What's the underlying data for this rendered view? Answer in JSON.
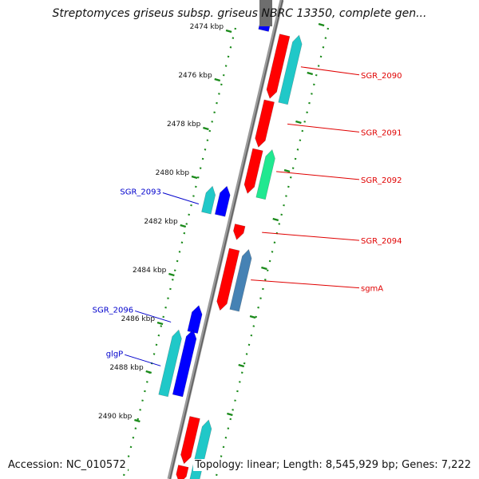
{
  "header": {
    "title": "Streptomyces griseus subsp. griseus NBRC 13350, complete gen..."
  },
  "footer": {
    "accession": "Accession: NC_010572",
    "summary": "Topology: linear; Length: 8,545,929 bp; Genes: 7,222"
  },
  "map": {
    "unit": "kbp",
    "ticks": [
      {
        "kbp": 2474,
        "label": "2474 kbp"
      },
      {
        "kbp": 2476,
        "label": "2476 kbp"
      },
      {
        "kbp": 2478,
        "label": "2478 kbp"
      },
      {
        "kbp": 2480,
        "label": "2480 kbp"
      },
      {
        "kbp": 2482,
        "label": "2482 kbp"
      },
      {
        "kbp": 2484,
        "label": "2484 kbp"
      },
      {
        "kbp": 2486,
        "label": "2486 kbp"
      },
      {
        "kbp": 2488,
        "label": "2488 kbp"
      },
      {
        "kbp": 2490,
        "label": "2490 kbp"
      },
      {
        "kbp": 2492,
        "label": "kbp"
      }
    ],
    "genes_forward": [
      {
        "name": "SGR_2090",
        "start_kbp": 2474.2,
        "end_kbp": 2476.8,
        "color": "#ff0000"
      },
      {
        "name": "SGR_2091",
        "start_kbp": 2476.9,
        "end_kbp": 2478.8,
        "color": "#ff0000"
      },
      {
        "name": "SGR_2092",
        "start_kbp": 2478.9,
        "end_kbp": 2480.7,
        "color": "#ff0000"
      },
      {
        "name": "SGR_2094",
        "start_kbp": 2482.0,
        "end_kbp": 2482.6,
        "color": "#ff0000"
      },
      {
        "name": "sgmA",
        "start_kbp": 2483.0,
        "end_kbp": 2485.5,
        "color": "#ff0000"
      },
      {
        "name": "",
        "start_kbp": 2489.9,
        "end_kbp": 2491.8,
        "color": "#ff0000"
      },
      {
        "name": "",
        "start_kbp": 2491.9,
        "end_kbp": 2492.6,
        "color": "#ff0000"
      }
    ],
    "genes_forward_other": [
      {
        "start_kbp": 2474.2,
        "end_kbp": 2477.0,
        "color": "#20c8c8"
      },
      {
        "start_kbp": 2478.9,
        "end_kbp": 2480.9,
        "color": "#20e890"
      },
      {
        "start_kbp": 2483.0,
        "end_kbp": 2485.5,
        "color": "#4682b4"
      },
      {
        "start_kbp": 2490.0,
        "end_kbp": 2492.6,
        "color": "#20c8c8"
      }
    ],
    "genes_reverse": [
      {
        "name": "",
        "start_kbp": 2473.2,
        "end_kbp": 2474.0,
        "color": "#0000ff"
      },
      {
        "name": "SGR_2093",
        "start_kbp": 2480.4,
        "end_kbp": 2481.6,
        "color": "#0000ff"
      },
      {
        "name": "SGR_2096",
        "start_kbp": 2485.3,
        "end_kbp": 2486.4,
        "color": "#0000ff"
      },
      {
        "name": "glgP",
        "start_kbp": 2486.3,
        "end_kbp": 2489.0,
        "color": "#0000ff"
      }
    ],
    "genes_reverse_other": [
      {
        "start_kbp": 2480.4,
        "end_kbp": 2481.5,
        "color": "#20c8c8"
      },
      {
        "start_kbp": 2486.3,
        "end_kbp": 2489.0,
        "color": "#20c8c8"
      }
    ]
  }
}
